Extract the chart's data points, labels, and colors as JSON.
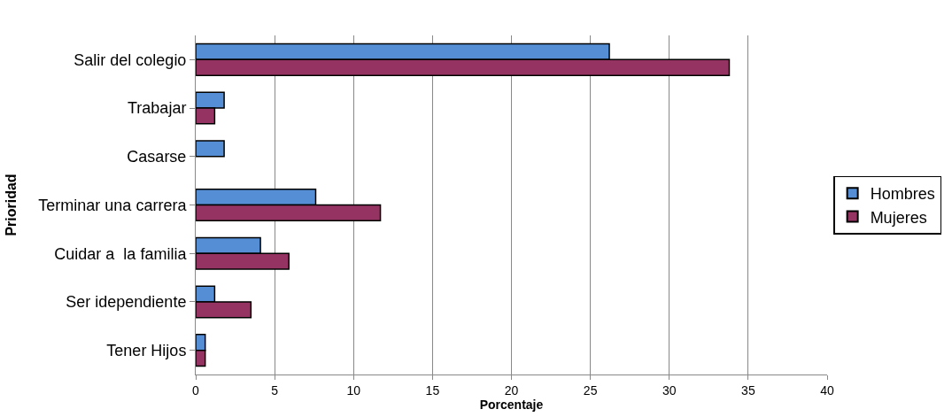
{
  "chart_data": {
    "type": "bar",
    "orientation": "horizontal",
    "xlabel": "Porcentaje",
    "ylabel": "Prioridad",
    "categories": [
      "Salir del colegio",
      "Trabajar",
      "Casarse",
      "Terminar una carrera",
      "Cuidar a  la familia",
      "Ser idependiente",
      "Tener Hijos"
    ],
    "series": [
      {
        "name": "Hombres",
        "color": "#558ed5",
        "values": [
          26.2,
          1.8,
          1.8,
          7.6,
          4.1,
          1.2,
          0.6
        ]
      },
      {
        "name": "Mujeres",
        "color": "#953462",
        "values": [
          33.8,
          1.2,
          null,
          11.7,
          5.9,
          3.5,
          0.6
        ]
      }
    ],
    "xlim": [
      0,
      40
    ],
    "xticks": [
      0,
      5,
      10,
      15,
      20,
      25,
      30,
      35,
      40
    ],
    "grid": "x",
    "legend": "right"
  }
}
